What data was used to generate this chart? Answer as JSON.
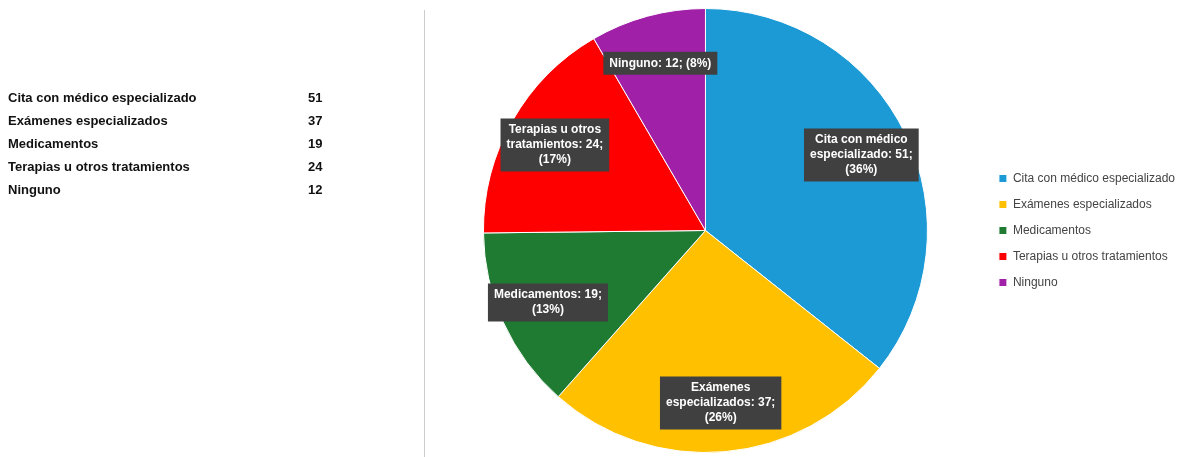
{
  "chart_data": {
    "type": "pie",
    "categories": [
      "Cita con médico especializado",
      "Exámenes especializados",
      "Medicamentos",
      "Terapias u otros tratamientos",
      "Ninguno"
    ],
    "values": [
      51,
      37,
      19,
      24,
      12
    ],
    "colors": [
      "#1b9ad6",
      "#ffc000",
      "#1f7a32",
      "#ff0000",
      "#a020a8"
    ],
    "value_labels": [
      "Cita con médico especializado: 51; (36%)",
      "Exámenes especializados: 37; (26%)",
      "Medicamentos: 19; (13%)",
      "Terapias u otros tratamientos: 24; (17%)",
      "Ninguno: 12; (8%)"
    ],
    "data_labels": true,
    "annotations": [
      "51",
      "37",
      "19",
      "24",
      "12"
    ],
    "legend": "right"
  }
}
